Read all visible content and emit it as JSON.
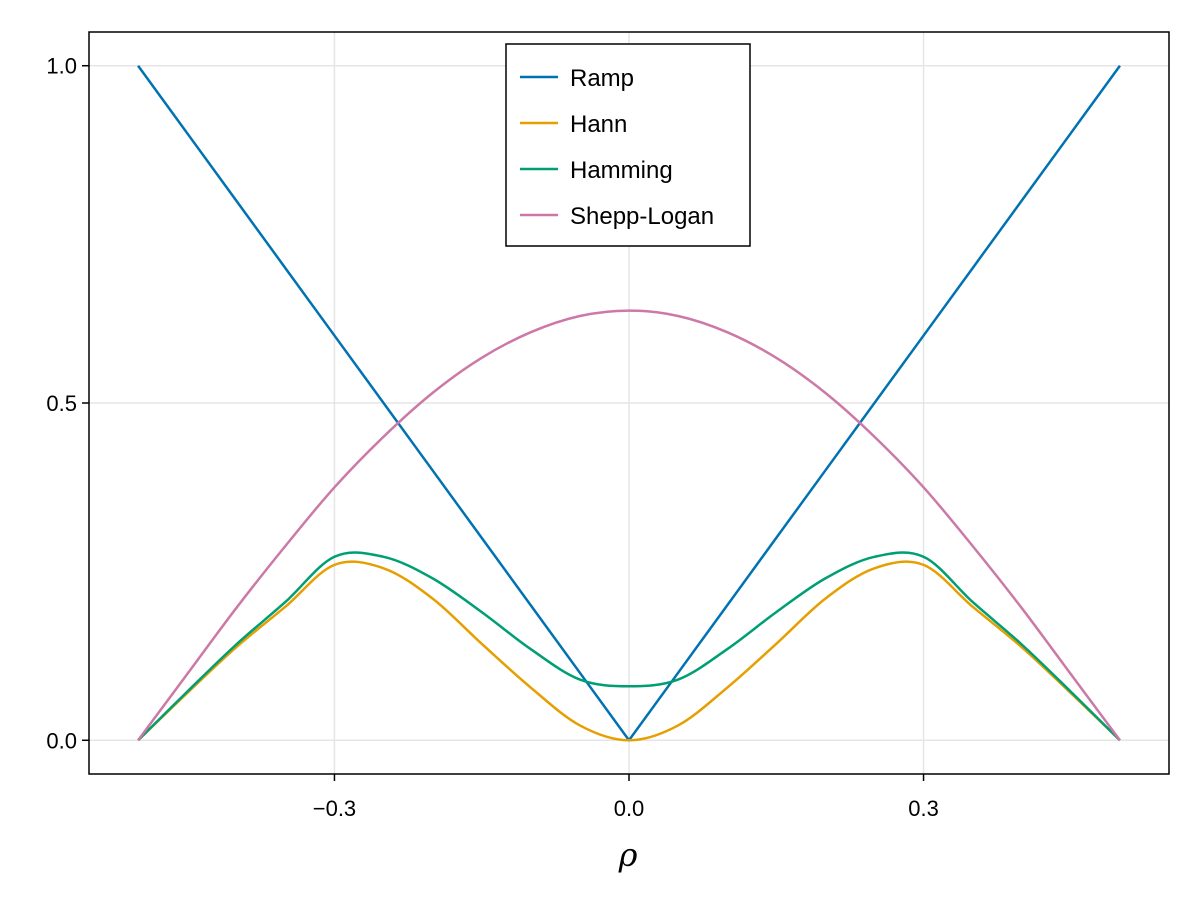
{
  "chart_data": {
    "type": "line",
    "title": "",
    "xlabel": "ρ",
    "ylabel": "",
    "xlim": [
      -0.55,
      0.55
    ],
    "ylim": [
      -0.05,
      1.05
    ],
    "xticks": [
      -0.3,
      0.0,
      0.3
    ],
    "xtick_labels": [
      "−0.3",
      "0.0",
      "0.3"
    ],
    "yticks": [
      0.0,
      0.5,
      1.0
    ],
    "ytick_labels": [
      "0.0",
      "0.5",
      "1.0"
    ],
    "grid": true,
    "legend_position": "top-center",
    "x": [
      -0.5,
      -0.45,
      -0.4,
      -0.35,
      -0.3,
      -0.25,
      -0.2,
      -0.15,
      -0.1,
      -0.05,
      0.0,
      0.05,
      0.1,
      0.15,
      0.2,
      0.25,
      0.3,
      0.35,
      0.4,
      0.45,
      0.5
    ],
    "series": [
      {
        "name": "Ramp",
        "color": "#0072b2",
        "values": [
          1.0,
          0.9,
          0.8,
          0.7,
          0.6,
          0.5,
          0.4,
          0.3,
          0.2,
          0.1,
          0.0,
          0.1,
          0.2,
          0.3,
          0.4,
          0.5,
          0.6,
          0.7,
          0.8,
          0.9,
          1.0
        ]
      },
      {
        "name": "Hann",
        "color": "#e69f00",
        "values": [
          0.0,
          0.07,
          0.138,
          0.198,
          0.26,
          0.255,
          0.21,
          0.143,
          0.078,
          0.022,
          0.0,
          0.022,
          0.078,
          0.143,
          0.21,
          0.255,
          0.26,
          0.198,
          0.138,
          0.07,
          0.0
        ]
      },
      {
        "name": "Hamming",
        "color": "#009e73",
        "values": [
          0.0,
          0.072,
          0.142,
          0.205,
          0.272,
          0.272,
          0.24,
          0.19,
          0.135,
          0.09,
          0.08,
          0.09,
          0.135,
          0.19,
          0.24,
          0.272,
          0.272,
          0.205,
          0.142,
          0.072,
          0.0
        ]
      },
      {
        "name": "Shepp-Logan",
        "color": "#cc79a7",
        "values": [
          0.0,
          0.098,
          0.196,
          0.288,
          0.375,
          0.45,
          0.515,
          0.567,
          0.605,
          0.629,
          0.637,
          0.629,
          0.605,
          0.567,
          0.515,
          0.45,
          0.375,
          0.288,
          0.196,
          0.098,
          0.0
        ]
      }
    ]
  }
}
